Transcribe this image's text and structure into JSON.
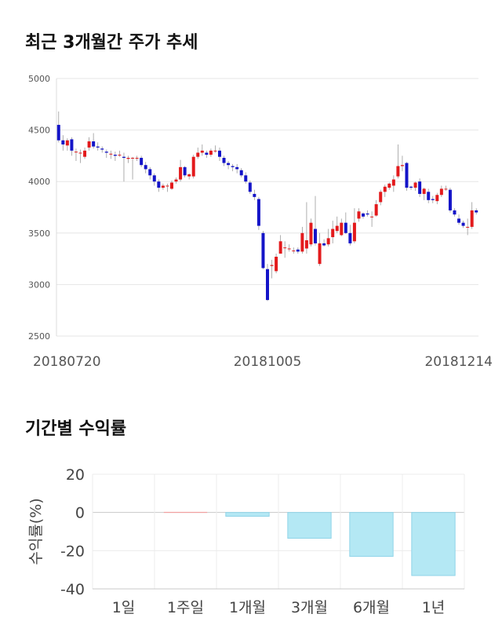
{
  "page": {
    "title_price": "최근 3개월간 주가 추세",
    "title_returns": "기간별 수익률"
  },
  "chart_data": [
    {
      "type": "candlestick",
      "title": "최근 3개월간 주가 추세",
      "ylim": [
        2500,
        5000
      ],
      "yticks": [
        2500,
        3000,
        3500,
        4000,
        4500,
        5000
      ],
      "x_labels": [
        "20180720",
        "20181005",
        "20181214"
      ],
      "grid": true,
      "colors": {
        "up": "#e31a1c",
        "down": "#1414c8",
        "wick": "#9a9a9a"
      },
      "candles": [
        [
          4550,
          4400,
          4680,
          4380
        ],
        [
          4400,
          4360,
          4450,
          4300
        ],
        [
          4350,
          4400,
          4420,
          4300
        ],
        [
          4410,
          4300,
          4430,
          4250
        ],
        [
          4290,
          4290,
          4320,
          4200
        ],
        [
          4280,
          4280,
          4310,
          4180
        ],
        [
          4240,
          4300,
          4330,
          4220
        ],
        [
          4330,
          4390,
          4430,
          4300
        ],
        [
          4390,
          4340,
          4470,
          4320
        ],
        [
          4340,
          4330,
          4380,
          4300
        ],
        [
          4320,
          4310,
          4340,
          4280
        ],
        [
          4290,
          4280,
          4310,
          4230
        ],
        [
          4270,
          4270,
          4300,
          4220
        ],
        [
          4260,
          4250,
          4290,
          4200
        ],
        [
          4260,
          4260,
          4300,
          4240
        ],
        [
          4240,
          4230,
          4280,
          4000
        ],
        [
          4220,
          4230,
          4250,
          4180
        ],
        [
          4230,
          4230,
          4240,
          4020
        ],
        [
          4230,
          4230,
          4250,
          4200
        ],
        [
          4230,
          4160,
          4250,
          4140
        ],
        [
          4160,
          4120,
          4190,
          4080
        ],
        [
          4120,
          4060,
          4140,
          4020
        ],
        [
          4060,
          4000,
          4080,
          3960
        ],
        [
          4000,
          3940,
          4020,
          3900
        ],
        [
          3940,
          3960,
          3980,
          3920
        ],
        [
          3960,
          3960,
          3980,
          3900
        ],
        [
          3930,
          3990,
          4010,
          3920
        ],
        [
          4000,
          4020,
          4040,
          3980
        ],
        [
          4020,
          4140,
          4210,
          4000
        ],
        [
          4140,
          4060,
          4150,
          4040
        ],
        [
          4050,
          4070,
          4080,
          4020
        ],
        [
          4050,
          4240,
          4260,
          4030
        ],
        [
          4240,
          4280,
          4330,
          4220
        ],
        [
          4280,
          4300,
          4360,
          4250
        ],
        [
          4280,
          4260,
          4300,
          4230
        ],
        [
          4260,
          4300,
          4320,
          4240
        ],
        [
          4300,
          4300,
          4350,
          4280
        ],
        [
          4300,
          4240,
          4330,
          4200
        ],
        [
          4230,
          4180,
          4250,
          4150
        ],
        [
          4180,
          4160,
          4200,
          4120
        ],
        [
          4150,
          4140,
          4170,
          4100
        ],
        [
          4140,
          4120,
          4170,
          4080
        ],
        [
          4110,
          4060,
          4130,
          4040
        ],
        [
          4060,
          4000,
          4090,
          3980
        ],
        [
          3990,
          3900,
          4010,
          3880
        ],
        [
          3880,
          3850,
          3920,
          3820
        ],
        [
          3830,
          3570,
          3850,
          3530
        ],
        [
          3500,
          3160,
          3520,
          3150
        ],
        [
          3150,
          2850,
          3200,
          2840
        ],
        [
          3180,
          3190,
          3240,
          3060
        ],
        [
          3130,
          3270,
          3300,
          3110
        ],
        [
          3300,
          3420,
          3480,
          3300
        ],
        [
          3360,
          3360,
          3420,
          3260
        ],
        [
          3350,
          3350,
          3390,
          3320
        ],
        [
          3330,
          3330,
          3360,
          3300
        ],
        [
          3340,
          3320,
          3360,
          3300
        ],
        [
          3320,
          3500,
          3560,
          3300
        ],
        [
          3350,
          3430,
          3800,
          3300
        ],
        [
          3390,
          3600,
          3640,
          3370
        ],
        [
          3540,
          3400,
          3860,
          3380
        ],
        [
          3200,
          3400,
          3500,
          3180
        ],
        [
          3400,
          3380,
          3440,
          3370
        ],
        [
          3390,
          3450,
          3540,
          3370
        ],
        [
          3460,
          3540,
          3620,
          3400
        ],
        [
          3520,
          3570,
          3660,
          3500
        ],
        [
          3480,
          3600,
          3640,
          3470
        ],
        [
          3600,
          3500,
          3700,
          3490
        ],
        [
          3500,
          3400,
          3580,
          3380
        ],
        [
          3420,
          3600,
          3740,
          3400
        ],
        [
          3640,
          3710,
          3740,
          3610
        ],
        [
          3690,
          3660,
          3700,
          3640
        ],
        [
          3690,
          3680,
          3720,
          3660
        ],
        [
          3660,
          3660,
          3710,
          3560
        ],
        [
          3670,
          3780,
          3820,
          3660
        ],
        [
          3800,
          3900,
          3920,
          3770
        ],
        [
          3900,
          3950,
          3970,
          3850
        ],
        [
          3940,
          3980,
          3990,
          3920
        ],
        [
          3960,
          4020,
          4060,
          3900
        ],
        [
          4050,
          4150,
          4360,
          4030
        ],
        [
          4150,
          4160,
          4250,
          4100
        ],
        [
          4180,
          3940,
          4190,
          3910
        ],
        [
          3950,
          3940,
          3960,
          3920
        ],
        [
          3940,
          3990,
          4000,
          3910
        ],
        [
          4000,
          3880,
          4030,
          3850
        ],
        [
          3880,
          3930,
          3940,
          3820
        ],
        [
          3900,
          3820,
          3930,
          3790
        ],
        [
          3830,
          3820,
          3860,
          3790
        ],
        [
          3810,
          3870,
          3890,
          3780
        ],
        [
          3870,
          3930,
          3960,
          3850
        ],
        [
          3930,
          3930,
          3960,
          3910
        ],
        [
          3920,
          3720,
          3940,
          3700
        ],
        [
          3720,
          3680,
          3740,
          3660
        ],
        [
          3640,
          3600,
          3680,
          3580
        ],
        [
          3600,
          3570,
          3620,
          3550
        ],
        [
          3560,
          3560,
          3640,
          3480
        ],
        [
          3560,
          3720,
          3800,
          3540
        ],
        [
          3720,
          3700,
          3740,
          3680
        ]
      ]
    },
    {
      "type": "bar",
      "title": "기간별 수익률",
      "ylabel": "수익률(%)",
      "ylim": [
        -40,
        20
      ],
      "yticks": [
        -40,
        -20,
        0,
        20
      ],
      "categories": [
        "1일",
        "1주일",
        "1개월",
        "3개월",
        "6개월",
        "1년"
      ],
      "values": [
        0,
        0.3,
        -2,
        -13.5,
        -23,
        -33
      ],
      "colors": {
        "positive": "#f2a0a0",
        "negative": "#b4e8f4",
        "negative_edge": "#8fd4e8"
      }
    }
  ]
}
